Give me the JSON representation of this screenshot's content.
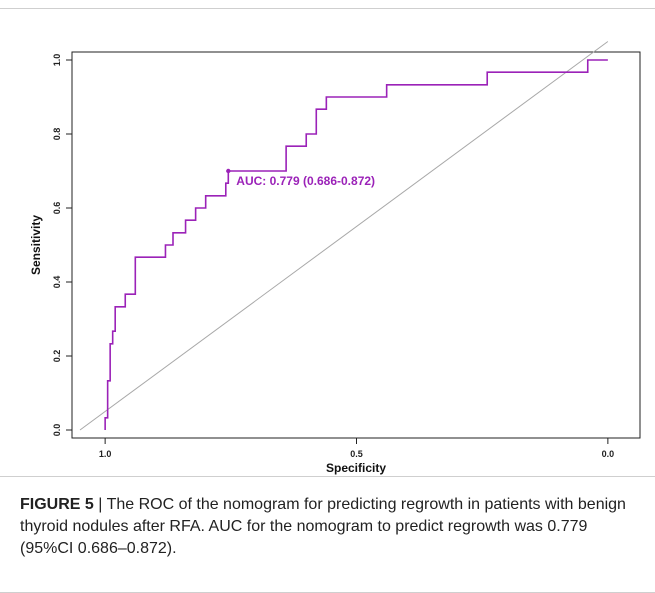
{
  "colors": {
    "roc_line": "#9b22b8",
    "diagonal": "#a8a8a8",
    "axis": "#222222"
  },
  "chart_data": {
    "type": "line",
    "xlabel": "Specificity",
    "ylabel": "Sensitivity",
    "x_reversed": true,
    "xlim": [
      1.05,
      -0.05
    ],
    "ylim": [
      0,
      1
    ],
    "x_ticks": [
      {
        "value": 1.0,
        "label": "1.0"
      },
      {
        "value": 0.5,
        "label": "0.5"
      },
      {
        "value": 0.0,
        "label": "0.0"
      }
    ],
    "y_ticks": [
      {
        "value": 0.0,
        "label": "0.0"
      },
      {
        "value": 0.2,
        "label": "0.2"
      },
      {
        "value": 0.4,
        "label": "0.4"
      },
      {
        "value": 0.6,
        "label": "0.6"
      },
      {
        "value": 0.8,
        "label": "0.8"
      },
      {
        "value": 1.0,
        "label": "1.0"
      }
    ],
    "series": [
      {
        "specificity": [
          1.0,
          1.0,
          0.995,
          0.995,
          0.99,
          0.99,
          0.985,
          0.985,
          0.98,
          0.98,
          0.975,
          0.975,
          0.96,
          0.96,
          0.94,
          0.94,
          0.88,
          0.88,
          0.865,
          0.865,
          0.84,
          0.84,
          0.82,
          0.82,
          0.8,
          0.8,
          0.78,
          0.78,
          0.76,
          0.76,
          0.755,
          0.755,
          0.64,
          0.64,
          0.6,
          0.6,
          0.58,
          0.58,
          0.56,
          0.56,
          0.44,
          0.44,
          0.24,
          0.24,
          0.04,
          0.04,
          0.0
        ],
        "sensitivity": [
          0.0,
          0.033,
          0.033,
          0.133,
          0.133,
          0.233,
          0.233,
          0.267,
          0.267,
          0.333,
          0.333,
          0.333,
          0.333,
          0.367,
          0.367,
          0.467,
          0.467,
          0.5,
          0.5,
          0.533,
          0.533,
          0.567,
          0.567,
          0.6,
          0.6,
          0.633,
          0.633,
          0.633,
          0.633,
          0.667,
          0.667,
          0.7,
          0.7,
          0.767,
          0.767,
          0.8,
          0.8,
          0.867,
          0.867,
          0.9,
          0.9,
          0.933,
          0.933,
          0.967,
          0.967,
          1.0,
          1.0
        ]
      }
    ],
    "reference_line": {
      "from": [
        1.05,
        0.0
      ],
      "to": [
        0.0,
        1.05
      ]
    },
    "marked_point": {
      "specificity": 0.755,
      "sensitivity": 0.7
    },
    "annotation": "AUC: 0.779 (0.686-0.872)"
  },
  "caption": {
    "figure_number": "FIGURE 5",
    "separator": " | ",
    "text": "The ROC of the nomogram for predicting regrowth in patients with benign thyroid nodules after RFA. AUC for the nomogram to predict regrowth was 0.779 (95%CI 0.686–0.872)."
  }
}
